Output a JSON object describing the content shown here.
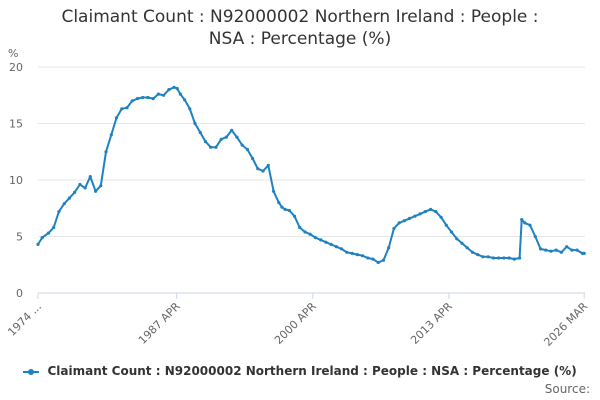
{
  "title_line1": "Claimant Count : N92000002 Northern Ireland : People :",
  "title_line2": "NSA : Percentage (%)",
  "source_label": "Source:",
  "colors": {
    "series": "#1f82c0",
    "grid": "#e6e6e6",
    "axis": "#ccd6eb",
    "text": "#666666"
  },
  "chart_data": {
    "type": "line",
    "ylabel": "%",
    "ylim": [
      0,
      20
    ],
    "yticks": [
      0,
      5,
      10,
      15,
      20
    ],
    "xlim": [
      1974.0,
      2026.25
    ],
    "xticks": [
      {
        "x": 1974.0,
        "label": "1974 ..."
      },
      {
        "x": 1987.25,
        "label": "1987 APR"
      },
      {
        "x": 2000.25,
        "label": "2000 APR"
      },
      {
        "x": 2013.25,
        "label": "2013 APR"
      },
      {
        "x": 2026.17,
        "label": "2026 MAR"
      }
    ],
    "grid": true,
    "legend_position": "bottom-center",
    "series": [
      {
        "name": "Claimant Count : N92000002 Northern Ireland : People : NSA : Percentage (%)",
        "x": [
          1974.0,
          1974.4,
          1975.0,
          1975.5,
          1976.0,
          1976.5,
          1977.0,
          1977.5,
          1978.0,
          1978.5,
          1979.0,
          1979.5,
          1980.0,
          1980.5,
          1981.0,
          1981.5,
          1982.0,
          1982.5,
          1983.0,
          1983.5,
          1984.0,
          1984.5,
          1985.0,
          1985.5,
          1986.0,
          1986.5,
          1987.0,
          1987.3,
          1987.6,
          1988.0,
          1988.5,
          1989.0,
          1989.5,
          1990.0,
          1990.5,
          1991.0,
          1991.5,
          1992.0,
          1992.5,
          1993.0,
          1993.5,
          1994.0,
          1994.5,
          1995.0,
          1995.5,
          1996.0,
          1996.5,
          1997.0,
          1997.3,
          1997.6,
          1998.0,
          1998.5,
          1999.0,
          1999.5,
          2000.0,
          2000.5,
          2001.0,
          2001.5,
          2002.0,
          2002.5,
          2003.0,
          2003.5,
          2004.0,
          2004.5,
          2005.0,
          2005.5,
          2006.0,
          2006.5,
          2007.0,
          2007.5,
          2008.0,
          2008.5,
          2009.0,
          2009.5,
          2010.0,
          2010.5,
          2011.0,
          2011.5,
          2012.0,
          2012.5,
          2013.0,
          2013.5,
          2014.0,
          2014.5,
          2015.0,
          2015.5,
          2016.0,
          2016.5,
          2017.0,
          2017.5,
          2018.0,
          2018.5,
          2019.0,
          2019.5,
          2020.0,
          2020.2,
          2020.5,
          2021.0,
          2021.5,
          2022.0,
          2022.5,
          2023.0,
          2023.5,
          2024.0,
          2024.5,
          2025.0,
          2025.5,
          2026.0,
          2026.17
        ],
        "y": [
          4.3,
          4.9,
          5.3,
          5.8,
          7.2,
          7.9,
          8.4,
          8.9,
          9.6,
          9.3,
          10.3,
          9.0,
          9.5,
          12.5,
          14.0,
          15.5,
          16.3,
          16.4,
          17.0,
          17.2,
          17.3,
          17.3,
          17.2,
          17.6,
          17.5,
          18.0,
          18.2,
          18.1,
          17.6,
          17.1,
          16.3,
          15.0,
          14.2,
          13.4,
          12.9,
          12.9,
          13.6,
          13.8,
          14.4,
          13.8,
          13.1,
          12.7,
          11.9,
          11.0,
          10.8,
          11.3,
          9.0,
          8.0,
          7.6,
          7.4,
          7.3,
          6.8,
          5.8,
          5.4,
          5.2,
          4.9,
          4.7,
          4.5,
          4.3,
          4.1,
          3.9,
          3.6,
          3.5,
          3.4,
          3.3,
          3.1,
          3.0,
          2.7,
          2.9,
          4.0,
          5.7,
          6.2,
          6.4,
          6.6,
          6.8,
          7.0,
          7.2,
          7.4,
          7.2,
          6.7,
          6.0,
          5.4,
          4.8,
          4.4,
          4.0,
          3.6,
          3.4,
          3.2,
          3.2,
          3.1,
          3.1,
          3.1,
          3.1,
          3.0,
          3.1,
          6.5,
          6.2,
          6.0,
          5.0,
          3.9,
          3.8,
          3.7,
          3.8,
          3.6,
          4.1,
          3.8,
          3.8,
          3.5,
          3.5
        ]
      }
    ]
  }
}
